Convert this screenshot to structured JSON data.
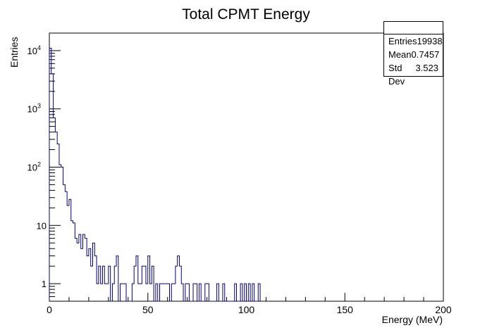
{
  "chart_data": {
    "type": "histogram",
    "title": "Total CPMT Energy",
    "xlabel": "Energy (MeV)",
    "ylabel": "Entries",
    "xlim": [
      0,
      200
    ],
    "ylim": [
      0.5,
      20000
    ],
    "y_scale": "log",
    "bin_width": 1,
    "line_color": "#000080",
    "x_ticks": [
      "0",
      "50",
      "100",
      "150",
      "200"
    ],
    "y_ticks": [
      {
        "value": 1,
        "label": "1"
      },
      {
        "value": 10,
        "label": "10"
      },
      {
        "value": 100,
        "label": "10",
        "exp": "2"
      },
      {
        "value": 1000,
        "label": "10",
        "exp": "3"
      },
      {
        "value": 10000,
        "label": "10",
        "exp": "4"
      }
    ],
    "bins": [
      {
        "x": 0,
        "y": 11000
      },
      {
        "x": 1,
        "y": 4000
      },
      {
        "x": 2,
        "y": 700
      },
      {
        "x": 3,
        "y": 400
      },
      {
        "x": 4,
        "y": 250
      },
      {
        "x": 5,
        "y": 110
      },
      {
        "x": 6,
        "y": 100
      },
      {
        "x": 7,
        "y": 50
      },
      {
        "x": 8,
        "y": 38
      },
      {
        "x": 9,
        "y": 22
      },
      {
        "x": 10,
        "y": 28
      },
      {
        "x": 11,
        "y": 12
      },
      {
        "x": 12,
        "y": 11
      },
      {
        "x": 13,
        "y": 6
      },
      {
        "x": 14,
        "y": 5
      },
      {
        "x": 15,
        "y": 7
      },
      {
        "x": 16,
        "y": 4
      },
      {
        "x": 17,
        "y": 7
      },
      {
        "x": 18,
        "y": 6
      },
      {
        "x": 19,
        "y": 3
      },
      {
        "x": 20,
        "y": 4
      },
      {
        "x": 21,
        "y": 2
      },
      {
        "x": 22,
        "y": 5
      },
      {
        "x": 23,
        "y": 3
      },
      {
        "x": 24,
        "y": 1
      },
      {
        "x": 25,
        "y": 2
      },
      {
        "x": 26,
        "y": 1
      },
      {
        "x": 27,
        "y": 2
      },
      {
        "x": 28,
        "y": 1
      },
      {
        "x": 29,
        "y": 1
      },
      {
        "x": 30,
        "y": 2
      },
      {
        "x": 32,
        "y": 1
      },
      {
        "x": 33,
        "y": 2
      },
      {
        "x": 34,
        "y": 3
      },
      {
        "x": 36,
        "y": 1
      },
      {
        "x": 37,
        "y": 1
      },
      {
        "x": 38,
        "y": 1
      },
      {
        "x": 42,
        "y": 1
      },
      {
        "x": 43,
        "y": 2
      },
      {
        "x": 44,
        "y": 3
      },
      {
        "x": 45,
        "y": 1
      },
      {
        "x": 46,
        "y": 1
      },
      {
        "x": 47,
        "y": 2
      },
      {
        "x": 48,
        "y": 2
      },
      {
        "x": 49,
        "y": 1
      },
      {
        "x": 50,
        "y": 3
      },
      {
        "x": 51,
        "y": 1
      },
      {
        "x": 52,
        "y": 2
      },
      {
        "x": 54,
        "y": 1
      },
      {
        "x": 56,
        "y": 1
      },
      {
        "x": 57,
        "y": 1
      },
      {
        "x": 58,
        "y": 1
      },
      {
        "x": 59,
        "y": 1
      },
      {
        "x": 60,
        "y": 1
      },
      {
        "x": 62,
        "y": 1
      },
      {
        "x": 63,
        "y": 1
      },
      {
        "x": 64,
        "y": 2
      },
      {
        "x": 65,
        "y": 3
      },
      {
        "x": 66,
        "y": 2
      },
      {
        "x": 67,
        "y": 1
      },
      {
        "x": 69,
        "y": 1
      },
      {
        "x": 70,
        "y": 1
      },
      {
        "x": 73,
        "y": 1
      },
      {
        "x": 74,
        "y": 1
      },
      {
        "x": 76,
        "y": 1
      },
      {
        "x": 79,
        "y": 1
      },
      {
        "x": 80,
        "y": 1
      },
      {
        "x": 85,
        "y": 1
      },
      {
        "x": 88,
        "y": 1
      },
      {
        "x": 94,
        "y": 1
      },
      {
        "x": 97,
        "y": 1
      },
      {
        "x": 99,
        "y": 1
      },
      {
        "x": 101,
        "y": 1
      },
      {
        "x": 103,
        "y": 1
      },
      {
        "x": 106,
        "y": 1
      }
    ]
  },
  "stats": {
    "entries_label": "Entries",
    "entries_value": "19938",
    "mean_label": "Mean",
    "mean_value": "0.7457",
    "std_label": "Std Dev",
    "std_value": "3.523"
  }
}
